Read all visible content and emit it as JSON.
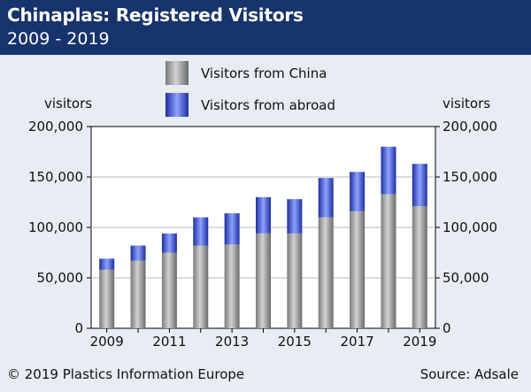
{
  "header": {
    "title": "Chinaplas: Registered Visitors",
    "subtitle": "2009 - 2019"
  },
  "footer": {
    "copyright": "© 2019 Plastics Information Europe",
    "source": "Source: Adsale"
  },
  "colors": {
    "header_bg": "#17336b",
    "panel_bg": "#e8ecf3",
    "china_mid": "#c9c9c9",
    "china_dark": "#6f6f6f",
    "abroad_mid": "#8aa0ff",
    "abroad_dark": "#1d2fa0"
  },
  "chart_data": {
    "type": "bar",
    "stacked": true,
    "y_unit_label_left": "visitors",
    "y_unit_label_right": "visitors",
    "categories": [
      "2009",
      "2010",
      "2011",
      "2012",
      "2013",
      "2014",
      "2015",
      "2016",
      "2017",
      "2018",
      "2019"
    ],
    "x_tick_labels": [
      "2009",
      "",
      "2011",
      "",
      "2013",
      "",
      "2015",
      "",
      "2017",
      "",
      "2019"
    ],
    "series": [
      {
        "name": "Visitors from China",
        "values": [
          58000,
          67000,
          75000,
          82000,
          83000,
          94000,
          94000,
          110000,
          116000,
          133000,
          121000
        ]
      },
      {
        "name": "Visitors from abroad",
        "values": [
          11000,
          15000,
          19000,
          28000,
          31000,
          36000,
          34000,
          39000,
          39000,
          47000,
          42000
        ]
      }
    ],
    "ylim": [
      0,
      200000
    ],
    "yticks": [
      0,
      50000,
      100000,
      150000,
      200000
    ],
    "ytick_labels": [
      "0",
      "50,000",
      "100,000",
      "150,000",
      "200,000"
    ],
    "grid": true,
    "legend_position": "top-center"
  }
}
